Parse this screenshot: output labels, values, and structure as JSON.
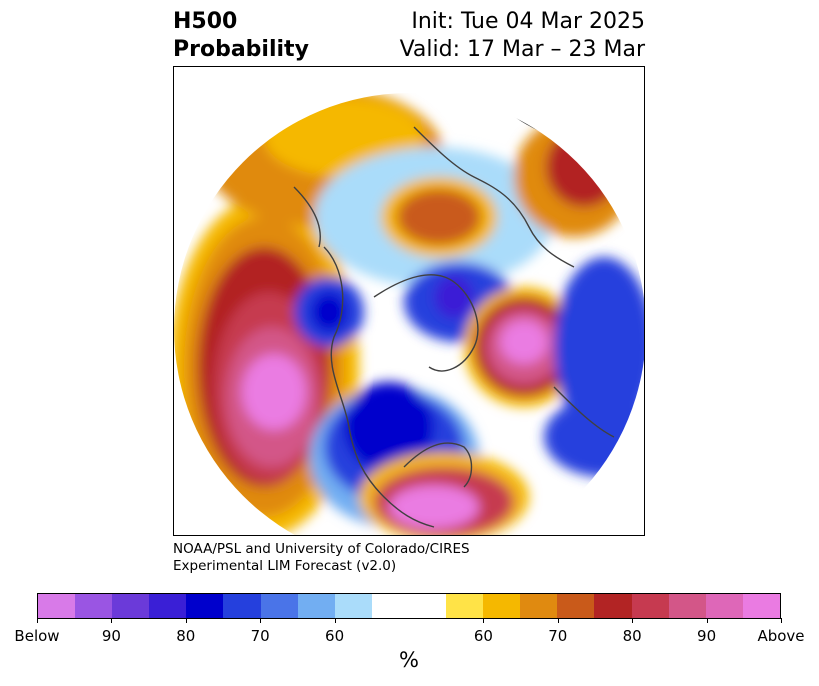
{
  "header": {
    "field": "H500",
    "product": "Probability",
    "init": "Init: Tue 04 Mar 2025",
    "valid": "Valid: 17 Mar – 23 Mar"
  },
  "credit": {
    "line1": "NOAA/PSL and University of Colorado/CIRES",
    "line2": "Experimental LIM Forecast (v2.0)"
  },
  "colorbar": {
    "colors": [
      "#d87ae8",
      "#9a55e3",
      "#6b3ad9",
      "#3a1fd6",
      "#0000cc",
      "#2540dd",
      "#4a74e8",
      "#72aef2",
      "#aadcfa",
      "#ffffff",
      "#ffffff",
      "#ffe347",
      "#f5b800",
      "#e08a10",
      "#c95a1a",
      "#b22424",
      "#c63a50",
      "#d35688",
      "#de67b8",
      "#ea7be2"
    ],
    "tick_labels": [
      "Below",
      "90",
      "80",
      "70",
      "60",
      "60",
      "70",
      "80",
      "90",
      "Above"
    ],
    "unit": "%"
  },
  "map": {
    "projection": "north-polar-stereographic",
    "regions": "Northern Hemisphere 500 hPa height anomaly probability"
  }
}
